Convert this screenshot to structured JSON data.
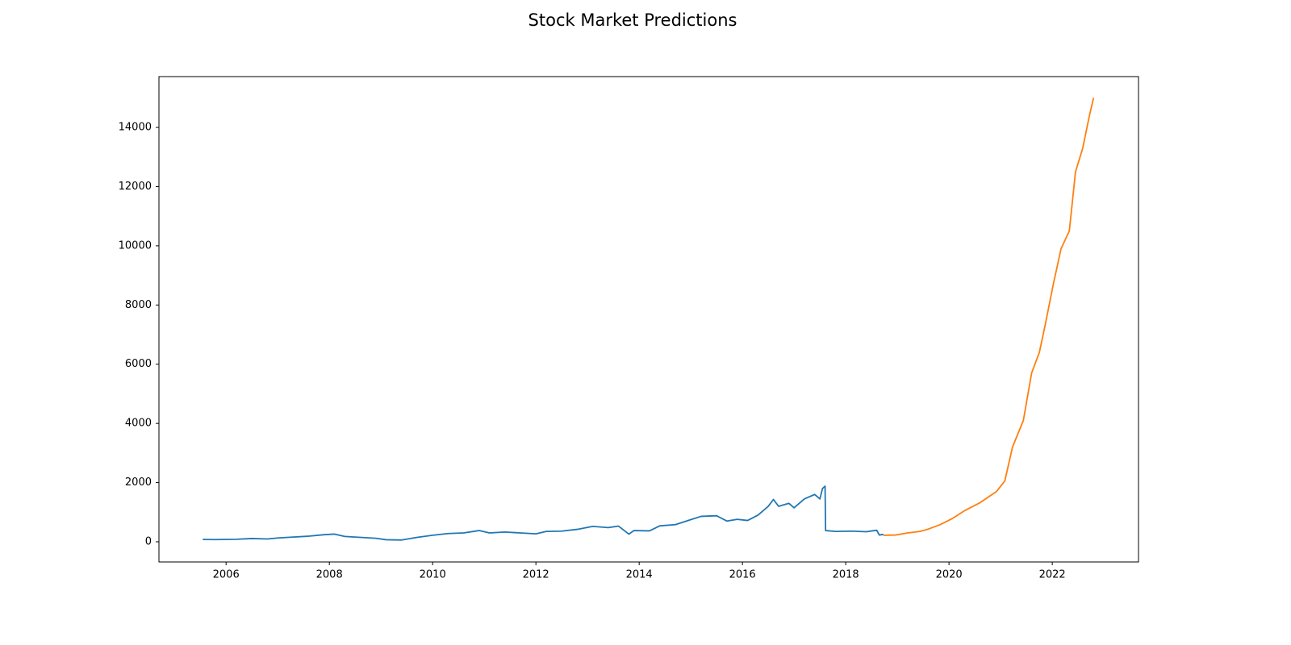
{
  "chart_data": {
    "type": "line",
    "title": "Stock Market Predictions",
    "series": [
      {
        "color": "#1f77b4",
        "x": [
          2005.55,
          2005.8,
          2006.2,
          2006.5,
          2006.8,
          2007.0,
          2007.3,
          2007.6,
          2007.9,
          2008.1,
          2008.3,
          2008.6,
          2008.9,
          2009.1,
          2009.4,
          2009.7,
          2010.0,
          2010.3,
          2010.6,
          2010.9,
          2011.1,
          2011.4,
          2011.7,
          2012.0,
          2012.2,
          2012.5,
          2012.8,
          2013.1,
          2013.4,
          2013.6,
          2013.8,
          2013.9,
          2014.2,
          2014.4,
          2014.7,
          2015.0,
          2015.2,
          2015.5,
          2015.7,
          2015.9,
          2016.1,
          2016.3,
          2016.5,
          2016.6,
          2016.7,
          2016.9,
          2017.0,
          2017.2,
          2017.4,
          2017.5,
          2017.55,
          2017.6,
          2017.61,
          2017.8,
          2018.1,
          2018.4,
          2018.6,
          2018.65,
          2018.73
        ],
        "values": [
          80,
          75,
          85,
          110,
          95,
          130,
          160,
          190,
          240,
          260,
          180,
          150,
          120,
          70,
          60,
          150,
          220,
          280,
          300,
          380,
          300,
          330,
          300,
          270,
          350,
          360,
          420,
          520,
          480,
          530,
          260,
          380,
          370,
          540,
          580,
          750,
          860,
          880,
          700,
          760,
          720,
          900,
          1200,
          1430,
          1200,
          1300,
          1150,
          1450,
          1600,
          1450,
          1800,
          1880,
          380,
          350,
          360,
          340,
          390,
          230,
          250
        ]
      },
      {
        "color": "#ff7f0e",
        "x": [
          2018.73,
          2018.97,
          2019.2,
          2019.44,
          2019.6,
          2019.83,
          2020.06,
          2020.3,
          2020.6,
          2020.92,
          2021.08,
          2021.23,
          2021.44,
          2021.6,
          2021.75,
          2021.86,
          2022.02,
          2022.17,
          2022.33,
          2022.45,
          2022.59,
          2022.72,
          2022.8
        ],
        "values": [
          220,
          230,
          300,
          350,
          430,
          580,
          780,
          1050,
          1320,
          1700,
          2050,
          3200,
          4100,
          5700,
          6400,
          7300,
          8700,
          9900,
          10500,
          12500,
          13300,
          14400,
          15000
        ]
      }
    ],
    "xlim": [
      2004.7,
      2023.67
    ],
    "xticks": [
      2006,
      2008,
      2010,
      2012,
      2014,
      2016,
      2018,
      2020,
      2022
    ],
    "ylim": [
      -681,
      15717
    ],
    "yticks": [
      0,
      2000,
      4000,
      6000,
      8000,
      10000,
      12000,
      14000
    ],
    "grid": false
  }
}
